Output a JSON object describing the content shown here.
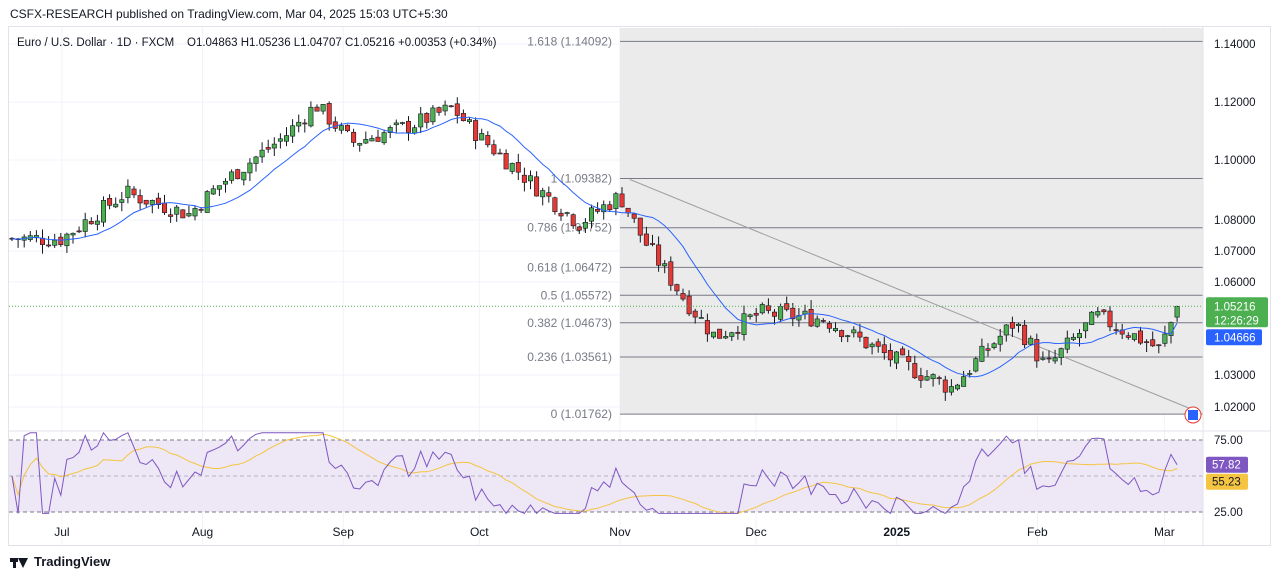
{
  "publisher": "CSFX-RESEARCH published on TradingView.com, Mar 04, 2025 15:03 UTC+5:30",
  "footer_brand": "TradingView",
  "legend": {
    "symbol": "Euro / U.S. Dollar · 1D · FXCM",
    "ohlc": "O1.04863  H1.05236  L1.04707  C1.05216  +0.00353 (+0.34%)"
  },
  "colors": {
    "up": "#4caf50",
    "down": "#e53935",
    "ma": "#2962ff",
    "rsi": "#7e57c2",
    "rsi_ma": "#f5c542",
    "fib_zone": "#ebebeb",
    "rsi_band": "#ede7f6",
    "price_badge": "#4caf50",
    "ma_badge": "#2962ff"
  },
  "price_axis": {
    "ticks": [
      "1.14000",
      "1.12000",
      "1.10000",
      "1.08000",
      "1.07000",
      "1.06000",
      "1.05216",
      "1.04666",
      "1.03000",
      "1.02000"
    ],
    "current_price": "1.05216",
    "countdown": "12:26:29",
    "ma_value": "1.04666"
  },
  "rsi_axis": {
    "ticks": [
      "75.00",
      "25.00"
    ],
    "rsi_value": "57.82",
    "rsi_ma_value": "55.23"
  },
  "time_axis": [
    "Jul",
    "Aug",
    "Sep",
    "Oct",
    "Nov",
    "Dec",
    "2025",
    "Feb",
    "Mar"
  ],
  "fib_levels": [
    {
      "label": "1.618 (1.14092)",
      "price": 1.14092
    },
    {
      "label": "1 (1.09382)",
      "price": 1.09382
    },
    {
      "label": "0.786 (1.07752)",
      "price": 1.07752
    },
    {
      "label": "0.618 (1.06472)",
      "price": 1.06472
    },
    {
      "label": "0.5 (1.05572)",
      "price": 1.05572
    },
    {
      "label": "0.382 (1.04673)",
      "price": 1.04673
    },
    {
      "label": "0.236 (1.03561)",
      "price": 1.03561
    },
    {
      "label": "0 (1.01762)",
      "price": 1.01762
    }
  ],
  "chart_data": {
    "type": "candlestick",
    "title": "Euro / U.S. Dollar · 1D · FXCM",
    "x_label": "",
    "y_label": "",
    "ylim": [
      1.015,
      1.144
    ],
    "x_ticks": [
      "Jul",
      "Aug",
      "Sep",
      "Oct",
      "Nov",
      "Dec",
      "2025",
      "Feb",
      "Mar"
    ],
    "series": [
      {
        "name": "Euro / U.S. Dollar",
        "kind": "candlestick",
        "close_points": [
          {
            "date": "2024-07-01",
            "close": 1.074
          },
          {
            "date": "2024-07-15",
            "close": 1.089
          },
          {
            "date": "2024-07-29",
            "close": 1.082
          },
          {
            "date": "2024-08-05",
            "close": 1.092
          },
          {
            "date": "2024-08-19",
            "close": 1.108
          },
          {
            "date": "2024-08-26",
            "close": 1.119
          },
          {
            "date": "2024-09-03",
            "close": 1.106
          },
          {
            "date": "2024-09-16",
            "close": 1.112
          },
          {
            "date": "2024-09-25",
            "close": 1.118
          },
          {
            "date": "2024-10-01",
            "close": 1.108
          },
          {
            "date": "2024-10-15",
            "close": 1.089
          },
          {
            "date": "2024-10-23",
            "close": 1.079
          },
          {
            "date": "2024-11-01",
            "close": 1.088
          },
          {
            "date": "2024-11-06",
            "close": 1.074
          },
          {
            "date": "2024-11-15",
            "close": 1.055
          },
          {
            "date": "2024-11-22",
            "close": 1.042
          },
          {
            "date": "2024-12-02",
            "close": 1.05
          },
          {
            "date": "2024-12-16",
            "close": 1.048
          },
          {
            "date": "2024-12-31",
            "close": 1.035
          },
          {
            "date": "2025-01-13",
            "close": 1.026
          },
          {
            "date": "2025-01-27",
            "close": 1.047
          },
          {
            "date": "2025-02-03",
            "close": 1.032
          },
          {
            "date": "2025-02-14",
            "close": 1.049
          },
          {
            "date": "2025-02-28",
            "close": 1.038
          },
          {
            "date": "2025-03-04",
            "close": 1.05216
          }
        ]
      },
      {
        "name": "Moving Average",
        "kind": "line",
        "last": 1.04666
      },
      {
        "name": "RSI",
        "kind": "line",
        "panel": "rsi",
        "last": 57.82
      },
      {
        "name": "RSI MA",
        "kind": "line",
        "panel": "rsi",
        "last": 55.23
      }
    ],
    "fib_retracement": [
      {
        "ratio": 1.618,
        "price": 1.14092
      },
      {
        "ratio": 1,
        "price": 1.09382
      },
      {
        "ratio": 0.786,
        "price": 1.07752
      },
      {
        "ratio": 0.618,
        "price": 1.06472
      },
      {
        "ratio": 0.5,
        "price": 1.05572
      },
      {
        "ratio": 0.382,
        "price": 1.04673
      },
      {
        "ratio": 0.236,
        "price": 1.03561
      },
      {
        "ratio": 0,
        "price": 1.01762
      }
    ],
    "rsi_bands": [
      75,
      25
    ],
    "grid": true,
    "legend_position": "top-left"
  }
}
